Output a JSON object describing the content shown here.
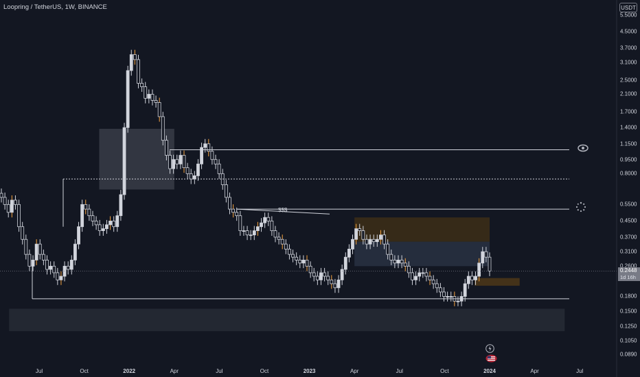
{
  "header": {
    "title": "Loopring / TetherUS, 1W, BINANCE",
    "currency_button": "USDT"
  },
  "price_axis": {
    "ticks": [
      "5.5000",
      "4.5000",
      "3.7000",
      "3.1000",
      "2.5000",
      "2.1000",
      "1.7000",
      "1.4000",
      "1.1500",
      "0.9500",
      "0.8000",
      "0.5500",
      "0.4500",
      "0.3700",
      "0.3100",
      "0.2600",
      "0.1800",
      "0.1500",
      "0.1250",
      "0.1050",
      "0.0890"
    ],
    "last_price": "0.2448",
    "countdown": "1d 16h"
  },
  "time_axis": {
    "labels": [
      "Jul",
      "Oct",
      "2022",
      "Apr",
      "Jul",
      "Oct",
      "2023",
      "Apr",
      "Jul",
      "Oct",
      "2024",
      "Apr",
      "Jul"
    ],
    "bold": [
      "2022",
      "2023",
      "2024"
    ]
  },
  "annotations": {
    "liquidity_label": "$$$"
  },
  "colors": {
    "background": "#131722",
    "up": "#d1d4dc",
    "down": "#d1d4dc",
    "accent_orange": "#f7a440",
    "zone_dark": "#2a2e39",
    "zone_brown": "#3a2a15"
  },
  "chart_data": {
    "type": "candlestick",
    "title": "Loopring / TetherUS, 1W, BINANCE",
    "y_scale": "log",
    "ylim": [
      0.085,
      5.6
    ],
    "x_range": [
      "2021-05",
      "2024-08"
    ],
    "levels": [
      1.07,
      0.75,
      0.52,
      0.175
    ],
    "zones": [
      {
        "from": "2021-11",
        "to": "2022-04",
        "low": 0.66,
        "high": 1.38
      },
      {
        "from": "2023-04",
        "to": "2024-01",
        "low": 0.35,
        "high": 0.47
      },
      {
        "from": "2023-04",
        "to": "2024-01",
        "low": 0.26,
        "high": 0.35
      },
      {
        "from": "2023-12",
        "to": "2024-03",
        "low": 0.205,
        "high": 0.225
      },
      {
        "from": "2021-05",
        "to": "2024-06",
        "low": 0.118,
        "high": 0.155
      }
    ],
    "series": [
      {
        "values": [
          0.6,
          0.55,
          0.5,
          0.58,
          0.55,
          0.42,
          0.36,
          0.3,
          0.26,
          0.28,
          0.34,
          0.3,
          0.28,
          0.25,
          0.26,
          0.24,
          0.22,
          0.23,
          0.26,
          0.25,
          0.28,
          0.34,
          0.42,
          0.55,
          0.52,
          0.48,
          0.45,
          0.43,
          0.4,
          0.41,
          0.43,
          0.45,
          0.42,
          0.48,
          0.62,
          1.4,
          2.8,
          3.4,
          3.2,
          2.4,
          2.3,
          2.0,
          2.1,
          1.95,
          1.9,
          1.6,
          1.2,
          1.0,
          0.85,
          0.95,
          0.9,
          1.0,
          0.86,
          0.8,
          0.75,
          0.78,
          0.9,
          1.1,
          1.15,
          1.05,
          0.95,
          0.9,
          0.8,
          0.7,
          0.6,
          0.52,
          0.5,
          0.48,
          0.4,
          0.4,
          0.38,
          0.38,
          0.4,
          0.42,
          0.44,
          0.47,
          0.45,
          0.4,
          0.37,
          0.36,
          0.34,
          0.32,
          0.3,
          0.29,
          0.28,
          0.27,
          0.28,
          0.26,
          0.24,
          0.23,
          0.22,
          0.24,
          0.23,
          0.22,
          0.21,
          0.2,
          0.22,
          0.25,
          0.29,
          0.32,
          0.36,
          0.41,
          0.4,
          0.36,
          0.34,
          0.36,
          0.35,
          0.36,
          0.38,
          0.34,
          0.3,
          0.28,
          0.27,
          0.28,
          0.27,
          0.26,
          0.24,
          0.22,
          0.23,
          0.24,
          0.24,
          0.23,
          0.22,
          0.21,
          0.2,
          0.19,
          0.18,
          0.18,
          0.18,
          0.17,
          0.17,
          0.18,
          0.21,
          0.23,
          0.22,
          0.23,
          0.27,
          0.31,
          0.29,
          0.245
        ]
      }
    ]
  }
}
